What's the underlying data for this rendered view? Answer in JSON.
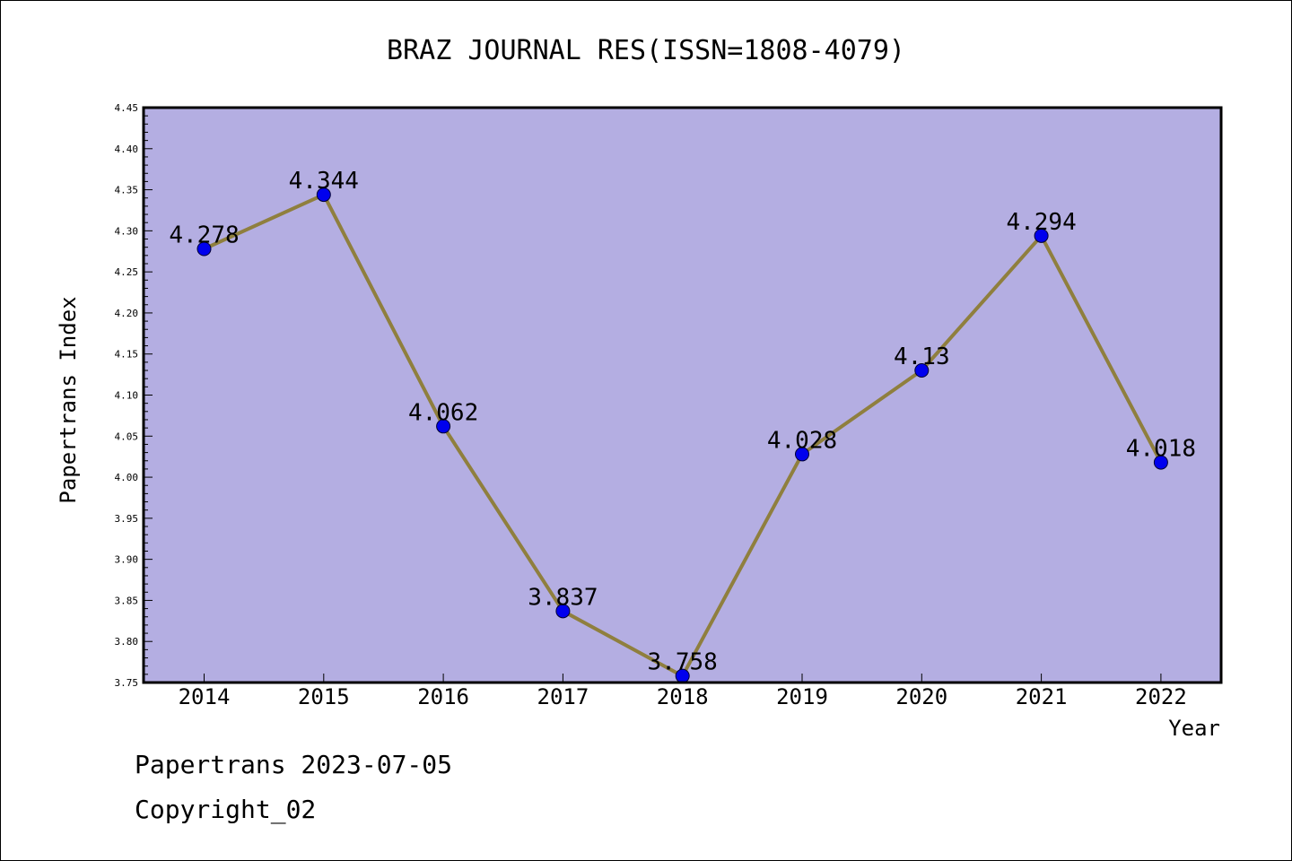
{
  "chart_data": {
    "type": "line",
    "title": "BRAZ JOURNAL RES(ISSN=1808-4079)",
    "xlabel": "Year",
    "ylabel": "Papertrans Index",
    "categories": [
      "2014",
      "2015",
      "2016",
      "2017",
      "2018",
      "2019",
      "2020",
      "2021",
      "2022"
    ],
    "values": [
      4.278,
      4.344,
      4.062,
      3.837,
      3.758,
      4.028,
      4.13,
      4.294,
      4.018
    ],
    "data_labels": [
      "4.278",
      "4.344",
      "4.062",
      "3.837",
      "3.758",
      "4.028",
      "4.13",
      "4.294",
      "4.018"
    ],
    "ylim": [
      3.75,
      4.45
    ],
    "yticks": [
      "3.75",
      "3.80",
      "3.85",
      "3.90",
      "3.95",
      "4.00",
      "4.05",
      "4.10",
      "4.15",
      "4.20",
      "4.25",
      "4.30",
      "4.35",
      "4.40",
      "4.45"
    ],
    "grid": false,
    "colors": {
      "plot_background": "#b4aee2",
      "line": "#8f7f3e",
      "marker": "#0000ee"
    }
  },
  "footer": {
    "line1": "Papertrans 2023-07-05",
    "line2": "Copyright_02"
  }
}
